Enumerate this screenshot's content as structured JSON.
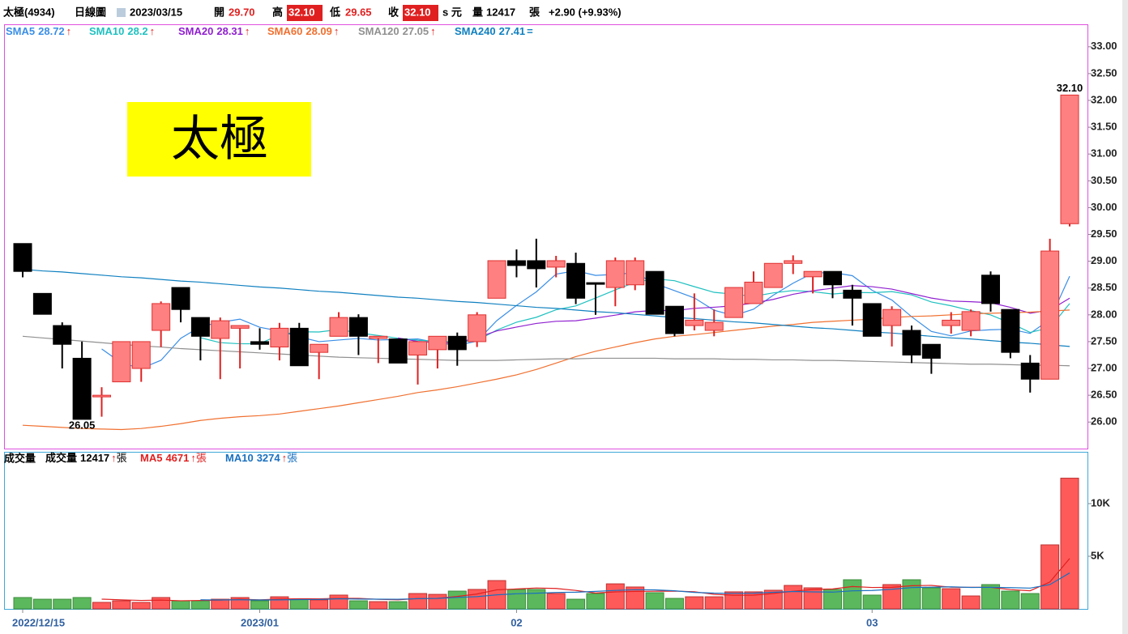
{
  "chart_data": {
    "type": "candlestick",
    "header": {
      "name": "太極(4934)",
      "view": "日線圖",
      "date": "2023/03/15",
      "open_label": "開",
      "open": "29.70",
      "high_label": "高",
      "high": "32.10",
      "low_label": "低",
      "low": "29.65",
      "close_label": "收",
      "close": "32.10",
      "currency": "s 元",
      "volume_label": "量",
      "volume": "12417",
      "volume_unit": "張",
      "change": "+2.90 (+9.93%)"
    },
    "annotation": "太極",
    "categories": [
      "2022/12/15",
      null,
      null,
      null,
      null,
      null,
      null,
      null,
      null,
      null,
      null,
      null,
      "2023/01",
      null,
      null,
      null,
      null,
      null,
      null,
      null,
      null,
      null,
      null,
      null,
      null,
      "02",
      null,
      null,
      null,
      null,
      null,
      null,
      null,
      null,
      null,
      null,
      null,
      null,
      null,
      null,
      null,
      null,
      null,
      "03",
      null,
      null,
      null,
      null,
      null,
      null,
      null,
      null,
      null,
      null
    ],
    "open": [
      29.33,
      28.4,
      27.8,
      27.19,
      26.48,
      26.75,
      27.0,
      27.71,
      28.51,
      27.95,
      27.56,
      27.75,
      27.5,
      27.4,
      27.75,
      27.3,
      27.6,
      27.95,
      27.56,
      27.55,
      27.25,
      27.35,
      27.6,
      27.5,
      28.31,
      29.01,
      29.01,
      28.89,
      28.96,
      28.6,
      28.51,
      28.56,
      28.81,
      28.16,
      27.8,
      27.71,
      27.95,
      28.21,
      28.51,
      28.96,
      28.71,
      28.81,
      28.46,
      28.21,
      27.8,
      27.71,
      27.45,
      27.8,
      27.71,
      28.74,
      28.1,
      27.1,
      26.8,
      29.7
    ],
    "high": [
      29.33,
      28.4,
      27.86,
      27.5,
      26.65,
      27.5,
      27.5,
      28.25,
      28.51,
      27.95,
      27.95,
      27.8,
      27.75,
      27.85,
      27.85,
      27.45,
      28.05,
      28.01,
      27.6,
      27.55,
      27.5,
      27.6,
      27.67,
      28.05,
      29.01,
      29.22,
      29.42,
      29.1,
      29.16,
      28.6,
      29.07,
      29.07,
      28.81,
      28.16,
      28.4,
      28.1,
      28.51,
      28.81,
      28.96,
      29.11,
      28.81,
      28.81,
      28.56,
      28.21,
      28.16,
      27.8,
      27.45,
      28.05,
      28.1,
      28.81,
      28.1,
      27.25,
      29.42,
      32.1
    ],
    "low": [
      28.7,
      28.01,
      27.0,
      26.05,
      26.1,
      26.75,
      26.75,
      27.4,
      27.86,
      27.15,
      26.8,
      27.0,
      27.35,
      27.15,
      27.05,
      26.8,
      27.6,
      27.25,
      27.1,
      27.1,
      26.7,
      27.0,
      27.05,
      27.4,
      28.31,
      28.7,
      28.51,
      28.7,
      28.2,
      28.0,
      28.16,
      28.46,
      28.01,
      27.6,
      27.71,
      27.6,
      27.95,
      28.21,
      28.51,
      28.76,
      28.4,
      28.31,
      27.8,
      27.6,
      27.41,
      27.1,
      26.9,
      27.65,
      27.6,
      28.06,
      27.19,
      26.55,
      26.8,
      29.65
    ],
    "close": [
      28.81,
      28.01,
      27.45,
      26.05,
      26.5,
      27.5,
      27.5,
      28.21,
      28.1,
      27.6,
      27.89,
      27.8,
      27.45,
      27.75,
      27.05,
      27.45,
      27.95,
      27.6,
      27.6,
      27.1,
      27.5,
      27.6,
      27.35,
      28.0,
      29.01,
      28.92,
      28.86,
      29.01,
      28.31,
      28.58,
      29.01,
      29.01,
      28.01,
      27.65,
      27.9,
      27.86,
      28.51,
      28.61,
      28.96,
      29.01,
      28.81,
      28.56,
      28.31,
      27.6,
      28.1,
      27.25,
      27.19,
      27.9,
      28.06,
      28.21,
      27.3,
      26.8,
      29.19,
      32.1
    ],
    "low_label": "26.05",
    "high_label": "32.10",
    "up_color": "#ff8080",
    "down_color": "#000000",
    "ylim": [
      25.49,
      33.42
    ],
    "yticks": [
      {
        "value": 26,
        "label": "26.00"
      },
      {
        "value": 26.5,
        "label": "26.50"
      },
      {
        "value": 27,
        "label": "27.00"
      },
      {
        "value": 27.5,
        "label": "27.50"
      },
      {
        "value": 28,
        "label": "28.00"
      },
      {
        "value": 28.5,
        "label": "28.50"
      },
      {
        "value": 29,
        "label": "29.00"
      },
      {
        "value": 29.5,
        "label": "29.50"
      },
      {
        "value": 30,
        "label": "30.00"
      },
      {
        "value": 30.5,
        "label": "30.50"
      },
      {
        "value": 31,
        "label": "31.00"
      },
      {
        "value": 31.5,
        "label": "31.50"
      },
      {
        "value": 32,
        "label": "32.00"
      },
      {
        "value": 32.5,
        "label": "32.50"
      },
      {
        "value": 33,
        "label": "33.00"
      }
    ],
    "series": [
      {
        "name": "SMA5",
        "value": 28.72,
        "trend": "↑",
        "color": "#3a8ee6"
      },
      {
        "name": "SMA10",
        "value": 28.2,
        "trend": "↑",
        "color": "#20c0c0"
      },
      {
        "name": "SMA20",
        "value": 28.31,
        "trend": "↑",
        "color": "#9020d0"
      },
      {
        "name": "SMA60",
        "value": 28.09,
        "trend": "↑",
        "color": "#f07030",
        "values": [
          25.94,
          25.92,
          25.9,
          25.88,
          25.87,
          25.86,
          25.88,
          25.92,
          25.97,
          26.03,
          26.07,
          26.1,
          26.12,
          26.15,
          26.2,
          26.25,
          26.3,
          26.36,
          26.42,
          26.48,
          26.55,
          26.6,
          26.66,
          26.73,
          26.8,
          26.88,
          26.98,
          27.1,
          27.22,
          27.32,
          27.4,
          27.48,
          27.55,
          27.6,
          27.63,
          27.67,
          27.71,
          27.75,
          27.79,
          27.82,
          27.86,
          27.88,
          27.9,
          27.92,
          27.95,
          27.97,
          27.98,
          28.0,
          28.02,
          28.03,
          28.04,
          28.05,
          28.07,
          28.09
        ]
      },
      {
        "name": "SMA120",
        "value": 27.05,
        "trend": "↑",
        "color": "#909090",
        "values": [
          27.6,
          27.57,
          27.54,
          27.51,
          27.48,
          27.45,
          27.42,
          27.4,
          27.37,
          27.35,
          27.33,
          27.31,
          27.29,
          27.27,
          27.25,
          27.23,
          27.21,
          27.2,
          27.19,
          27.18,
          27.17,
          27.16,
          27.15,
          27.15,
          27.15,
          27.16,
          27.17,
          27.18,
          27.18,
          27.19,
          27.19,
          27.19,
          27.19,
          27.18,
          27.18,
          27.18,
          27.17,
          27.17,
          27.16,
          27.16,
          27.15,
          27.15,
          27.14,
          27.13,
          27.12,
          27.11,
          27.1,
          27.09,
          27.08,
          27.08,
          27.07,
          27.06,
          27.06,
          27.05
        ]
      },
      {
        "name": "SMA240",
        "value": 27.41,
        "trend": "=",
        "color": "#1080c0",
        "values": [
          28.85,
          28.82,
          28.8,
          28.77,
          28.74,
          28.71,
          28.69,
          28.66,
          28.63,
          28.61,
          28.58,
          28.55,
          28.52,
          28.5,
          28.47,
          28.44,
          28.42,
          28.39,
          28.36,
          28.33,
          28.31,
          28.28,
          28.25,
          28.23,
          28.2,
          28.17,
          28.14,
          28.12,
          28.09,
          28.06,
          28.04,
          28.01,
          27.98,
          27.95,
          27.93,
          27.9,
          27.87,
          27.85,
          27.82,
          27.79,
          27.76,
          27.74,
          27.71,
          27.68,
          27.66,
          27.63,
          27.6,
          27.57,
          27.55,
          27.52,
          27.49,
          27.47,
          27.44,
          27.41
        ]
      }
    ],
    "volume": {
      "title": "成交量",
      "values": [
        1080,
        920,
        920,
        1080,
        620,
        770,
        620,
        1080,
        770,
        770,
        920,
        1080,
        770,
        1150,
        920,
        850,
        1310,
        770,
        690,
        690,
        1460,
        1380,
        1690,
        1850,
        2690,
        1850,
        1850,
        1460,
        920,
        1460,
        2380,
        2080,
        1540,
        1000,
        1150,
        1150,
        1620,
        1620,
        1770,
        2230,
        2000,
        1850,
        2770,
        1310,
        2310,
        2770,
        2000,
        1920,
        1230,
        2310,
        1690,
        1460,
        6080,
        12417
      ],
      "up_color": "#ff5a5a",
      "down_color": "#5cb85c",
      "ylim": [
        0,
        14920
      ],
      "yticks": [
        {
          "value": 5000,
          "label": "5K"
        },
        {
          "value": 10000,
          "label": "10K"
        }
      ],
      "series": [
        {
          "name": "成交量",
          "value": 12417,
          "trend": "↑",
          "unit": "張",
          "color": "#000000"
        },
        {
          "name": "MA5",
          "value": 4671,
          "trend": "↑",
          "unit": "張",
          "color": "#e02020"
        },
        {
          "name": "MA10",
          "value": 3274,
          "trend": "↑",
          "unit": "張",
          "color": "#1a70c0"
        }
      ]
    }
  }
}
